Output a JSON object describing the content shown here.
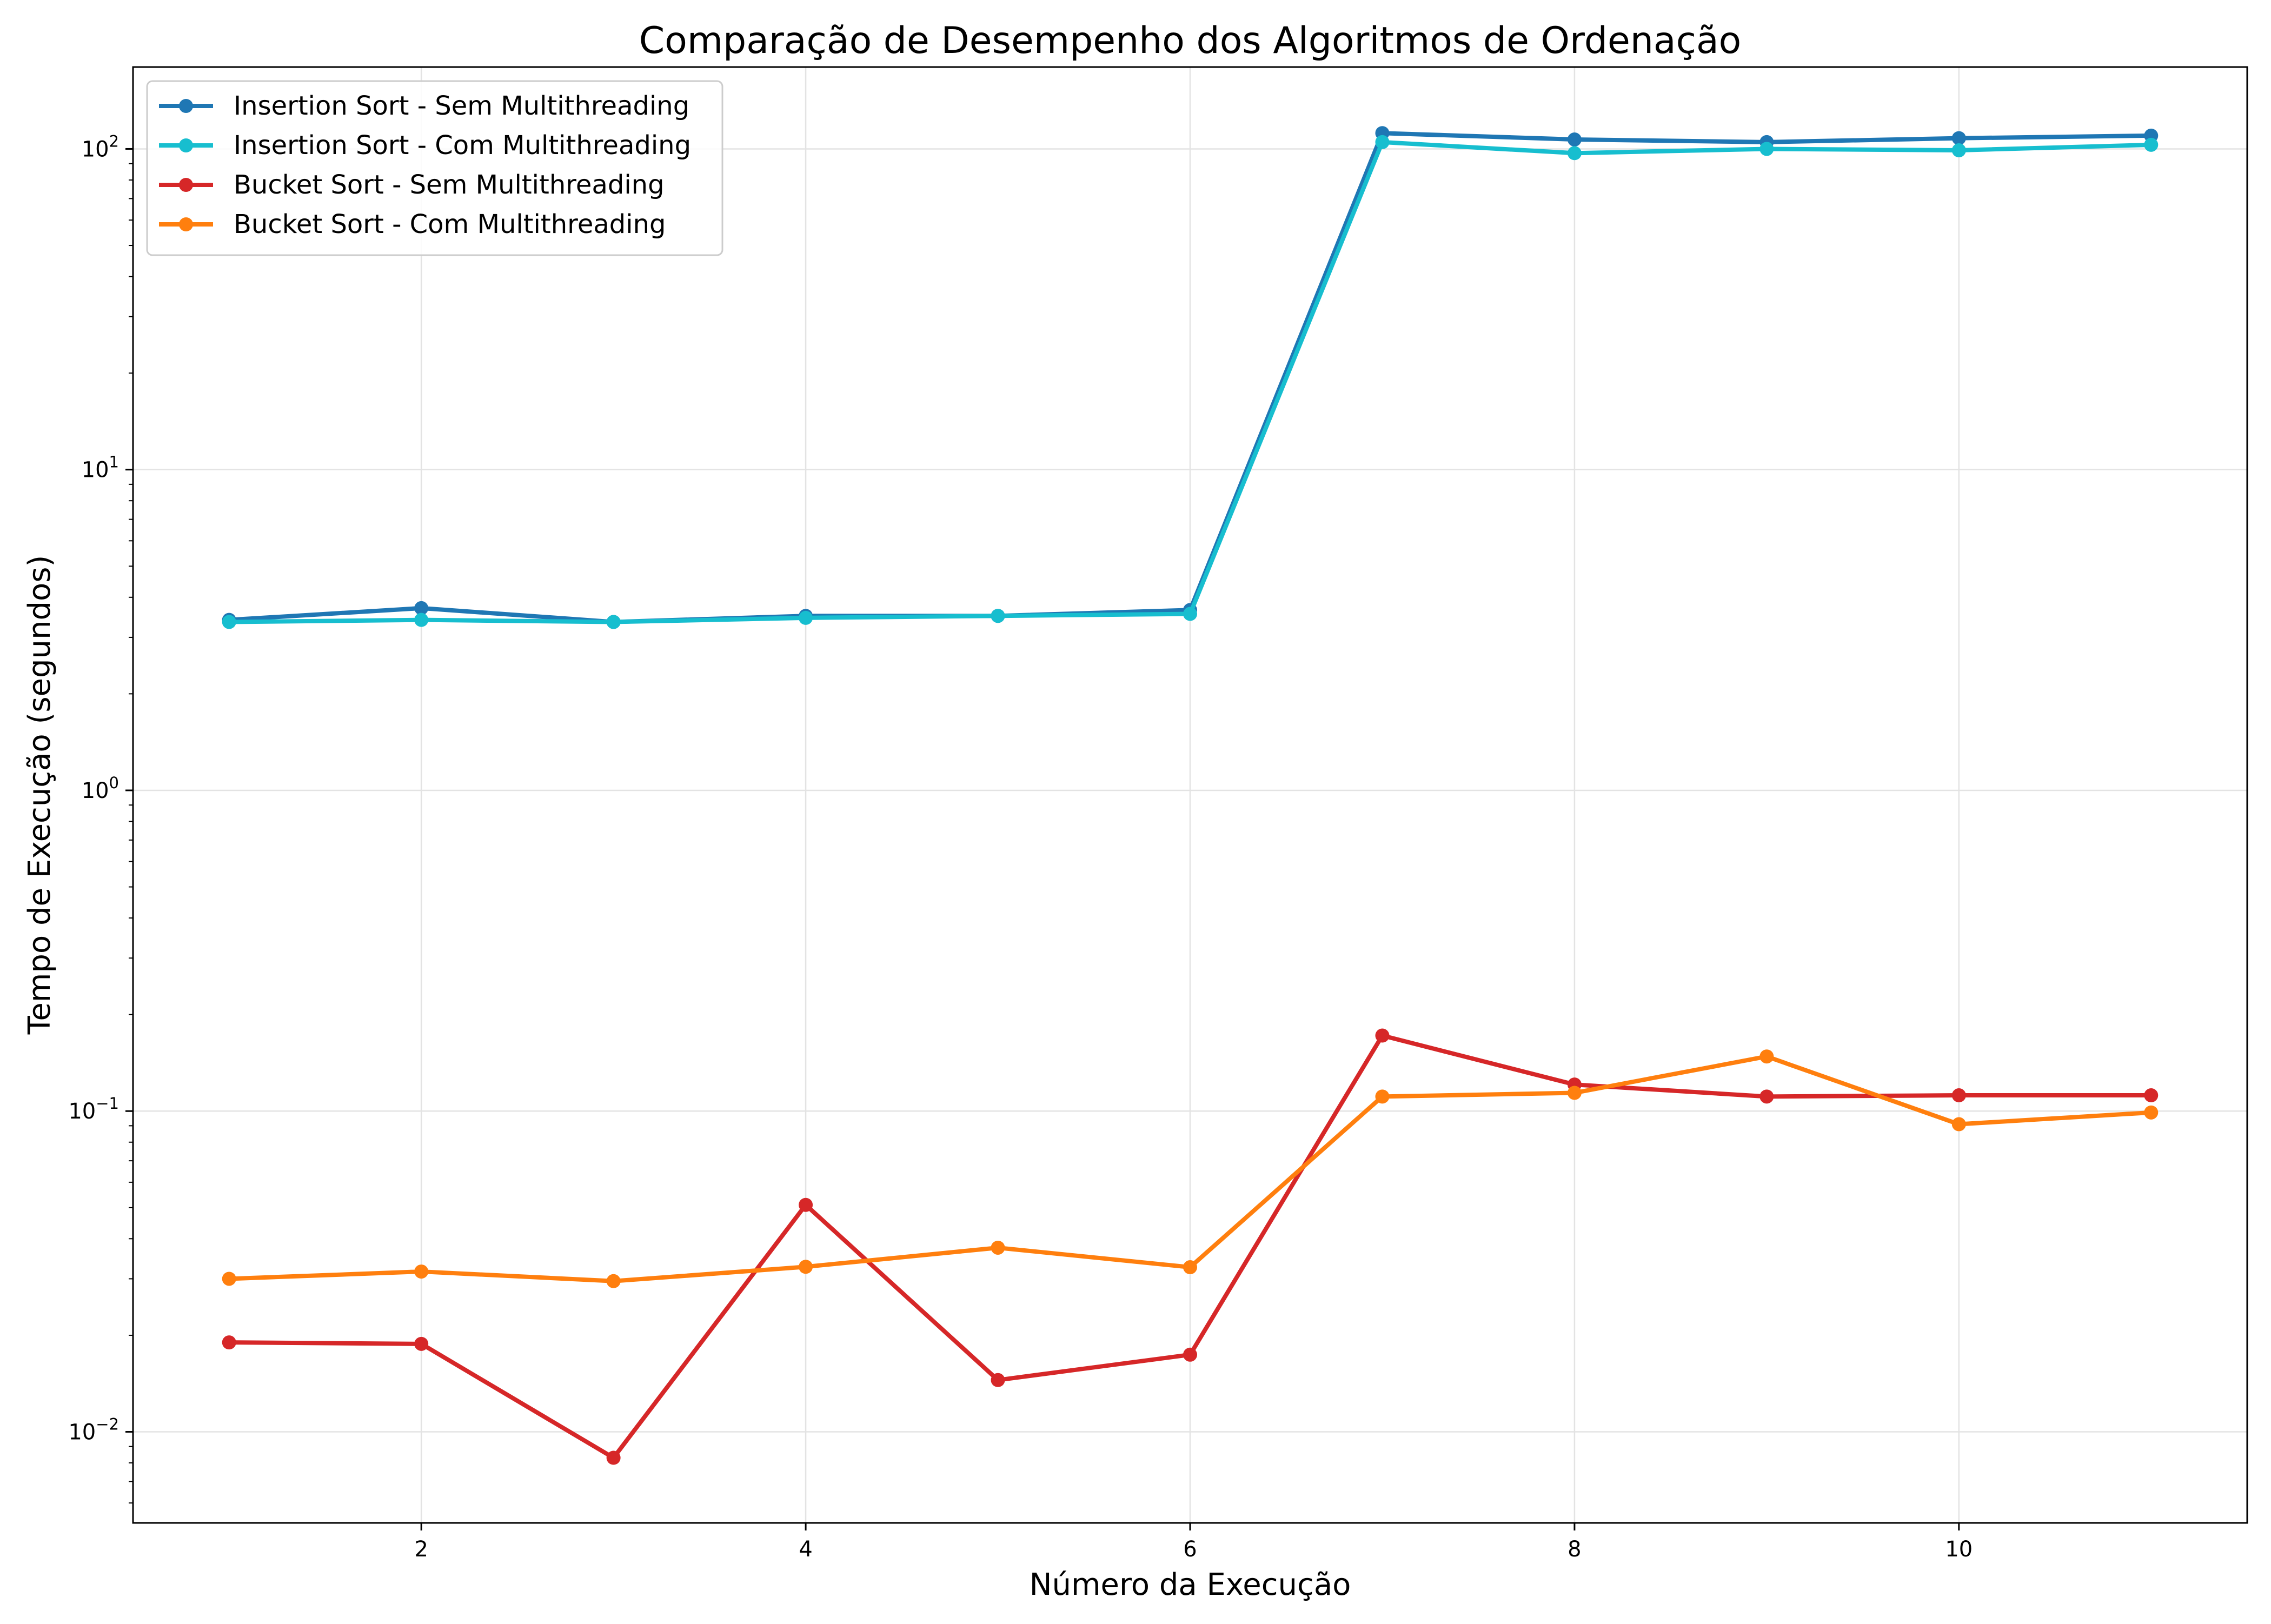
{
  "chart_data": {
    "type": "line",
    "title": "Comparação de Desempenho dos Algoritmos de Ordenação",
    "xlabel": "Número da Execução",
    "ylabel": "Tempo de Execução (segundos)",
    "x": [
      1,
      2,
      3,
      4,
      5,
      6,
      7,
      8,
      9,
      10,
      11
    ],
    "xlim": [
      0.5,
      11.5
    ],
    "xticks": [
      2,
      4,
      6,
      8,
      10
    ],
    "yscale": "log",
    "ylim": [
      0.0052,
      180
    ],
    "yticks": [
      {
        "value": 0.01,
        "base": "10",
        "exp": "−2"
      },
      {
        "value": 0.1,
        "base": "10",
        "exp": "−1"
      },
      {
        "value": 1,
        "base": "10",
        "exp": "0"
      },
      {
        "value": 10,
        "base": "10",
        "exp": "1"
      },
      {
        "value": 100,
        "base": "10",
        "exp": "2"
      }
    ],
    "grid": true,
    "legend_position": "top-left",
    "series": [
      {
        "name": "Insertion Sort - Sem Multithreading",
        "color": "#1f77b4",
        "values": [
          3.4,
          3.7,
          3.35,
          3.5,
          3.5,
          3.65,
          112,
          107,
          105,
          108,
          110
        ]
      },
      {
        "name": "Insertion Sort - Com Multithreading",
        "color": "#17becf",
        "values": [
          3.35,
          3.4,
          3.35,
          3.45,
          3.5,
          3.55,
          105,
          97,
          100,
          99,
          103
        ]
      },
      {
        "name": "Bucket Sort - Sem Multithreading",
        "color": "#d62728",
        "values": [
          0.019,
          0.0188,
          0.0083,
          0.051,
          0.0145,
          0.0174,
          0.172,
          0.121,
          0.111,
          0.112,
          0.112
        ]
      },
      {
        "name": "Bucket Sort - Com Multithreading",
        "color": "#ff7f0e",
        "values": [
          0.03,
          0.0316,
          0.0295,
          0.0327,
          0.0375,
          0.0326,
          0.111,
          0.114,
          0.148,
          0.091,
          0.099
        ]
      }
    ]
  }
}
